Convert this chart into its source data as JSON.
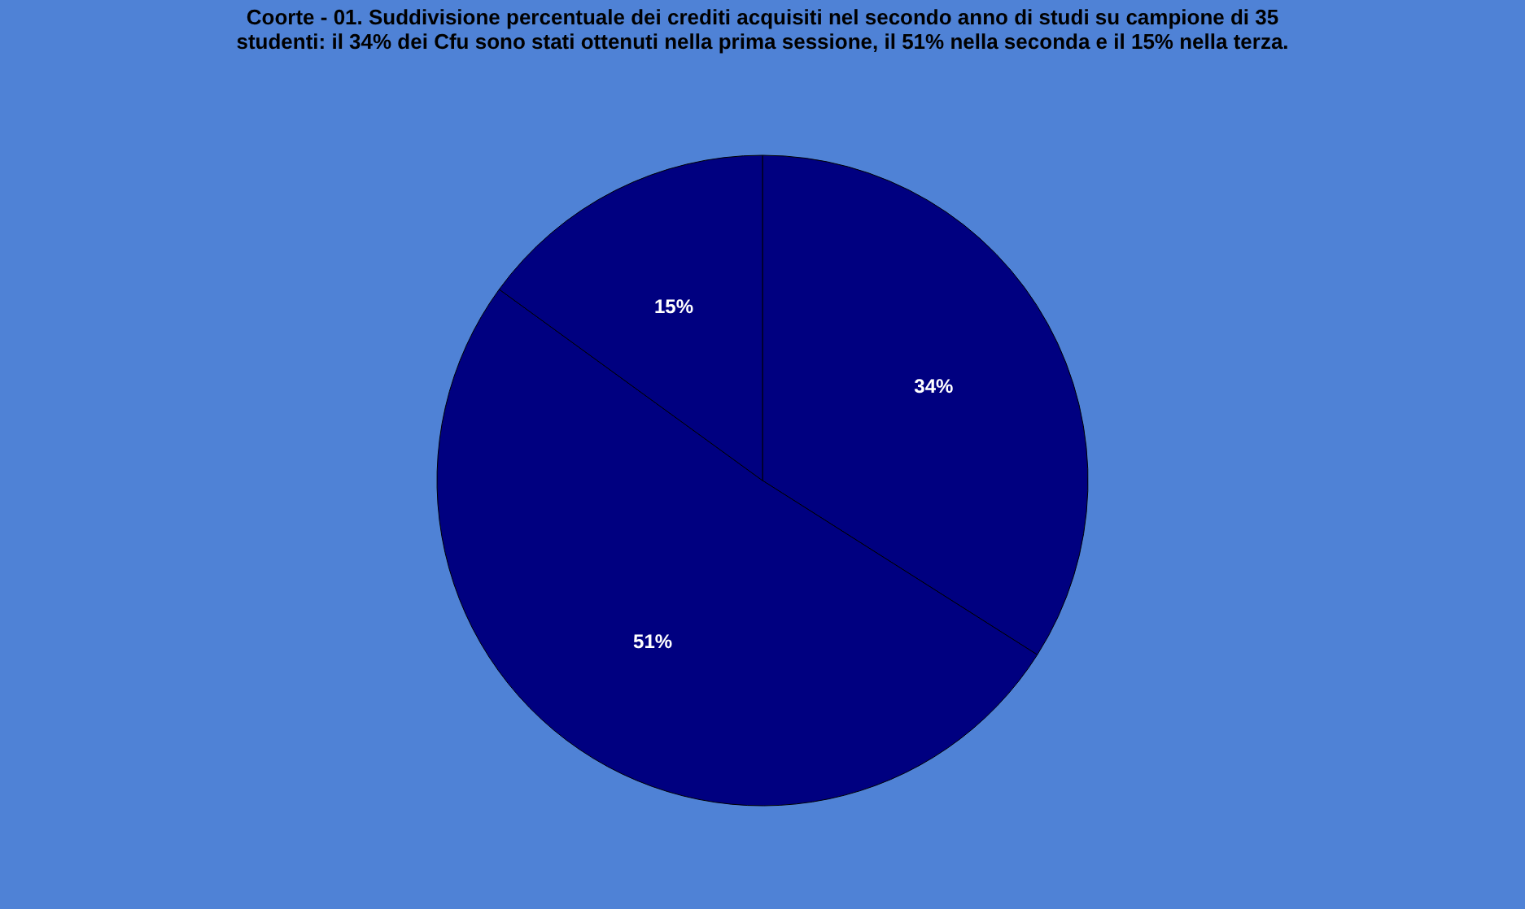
{
  "chart_data": {
    "type": "pie",
    "title": [
      "Coorte - 01. Suddivisione percentuale dei crediti acquisiti nel secondo anno di studi su campione di 35",
      "studenti: il 34%  dei Cfu sono stati ottenuti nella prima sessione, il 51%  nella seconda e il 15%  nella terza."
    ],
    "categories": [
      null,
      null,
      null
    ],
    "values": [
      34,
      51,
      15
    ],
    "value_labels": [
      "34%",
      "51%",
      "15%"
    ],
    "colors": [
      "#000080",
      "#000080",
      "#000080"
    ]
  }
}
